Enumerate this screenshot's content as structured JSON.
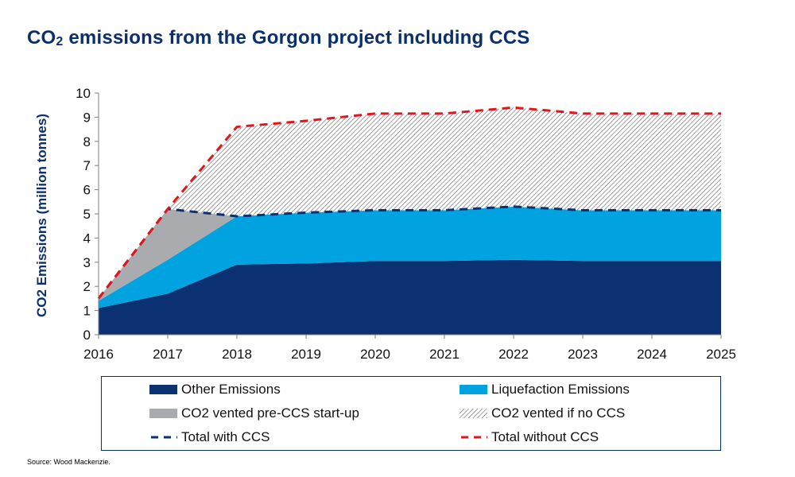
{
  "title": {
    "main": "CO",
    "sub": "2",
    "rest": " emissions from the Gorgon project including CCS"
  },
  "source": "Source: Wood Mackenzie.",
  "colors": {
    "other": "#0b3172",
    "liquefaction": "#00a3e0",
    "vented_pre_ccs": "#a9abae",
    "hatch": "#555555",
    "total_ccs": "#0b3172",
    "total_no_ccs": "#e4141b",
    "axis": "#7f7f7f",
    "title": "#0b2f6b"
  },
  "legend": [
    {
      "key": "other",
      "label": "Other Emissions",
      "style": "fill"
    },
    {
      "key": "liquefaction",
      "label": "Liquefaction Emissions",
      "style": "fill"
    },
    {
      "key": "vented_pre_ccs",
      "label": "CO2 vented pre-CCS start-up",
      "style": "fill"
    },
    {
      "key": "vented_no_ccs",
      "label": "CO2 vented if no CCS",
      "style": "hatch"
    },
    {
      "key": "total_ccs",
      "label": "Total with CCS",
      "style": "dash"
    },
    {
      "key": "total_no_ccs",
      "label": "Total without CCS",
      "style": "dash"
    }
  ],
  "chart_data": {
    "type": "area",
    "x": [
      2016,
      2017,
      2018,
      2019,
      2020,
      2021,
      2022,
      2023,
      2024,
      2025
    ],
    "ylabel": "CO2 Emissions (million tonnes)",
    "xlabel": "",
    "ylim": [
      0,
      10
    ],
    "yticks": [
      0,
      1,
      2,
      3,
      4,
      5,
      6,
      7,
      8,
      9,
      10
    ],
    "series": [
      {
        "name": "Other Emissions",
        "key": "other",
        "stacked": true,
        "values": [
          1.1,
          1.7,
          2.9,
          2.95,
          3.05,
          3.05,
          3.1,
          3.05,
          3.05,
          3.05
        ]
      },
      {
        "name": "Liquefaction Emissions",
        "key": "liquefaction",
        "stacked": true,
        "values": [
          0.3,
          1.4,
          2.0,
          2.1,
          2.1,
          2.1,
          2.2,
          2.1,
          2.1,
          2.1
        ]
      },
      {
        "name": "CO2 vented pre-CCS start-up",
        "key": "vented_pre_ccs",
        "stacked": true,
        "values": [
          0.1,
          2.1,
          0.0,
          0.0,
          0.0,
          0.0,
          0.0,
          0.0,
          0.0,
          0.0
        ]
      },
      {
        "name": "CO2 vented if no CCS",
        "key": "vented_no_ccs",
        "stacked": true,
        "values": [
          0.0,
          0.0,
          3.7,
          3.8,
          4.0,
          4.0,
          4.1,
          4.0,
          4.0,
          4.0
        ]
      },
      {
        "name": "Total with CCS",
        "key": "total_ccs",
        "line": true,
        "values": [
          1.5,
          5.2,
          4.9,
          5.05,
          5.15,
          5.15,
          5.3,
          5.15,
          5.15,
          5.15
        ]
      },
      {
        "name": "Total without CCS",
        "key": "total_no_ccs",
        "line": true,
        "values": [
          1.5,
          5.2,
          8.6,
          8.85,
          9.15,
          9.15,
          9.4,
          9.15,
          9.15,
          9.15
        ]
      }
    ],
    "legend_position": "bottom",
    "grid": false
  }
}
